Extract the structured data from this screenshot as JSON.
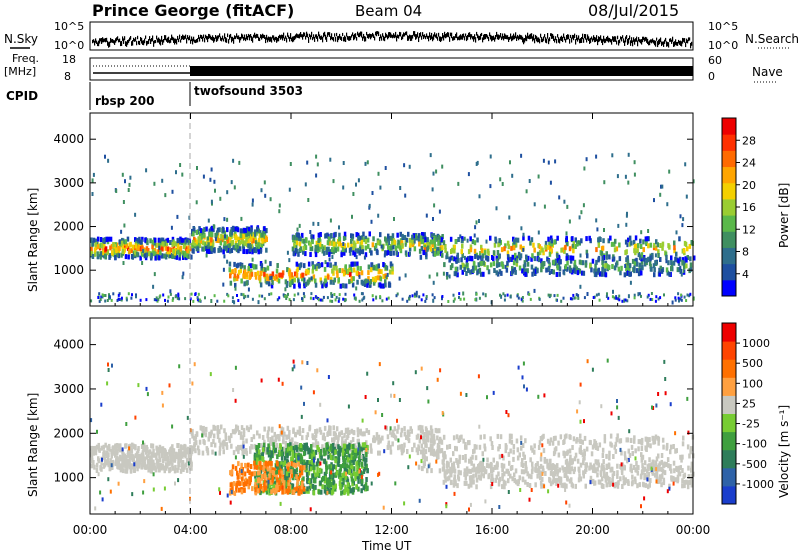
{
  "header": {
    "station": "Prince George (fitACF)",
    "beam": "Beam 04",
    "date": "08/Jul/2015"
  },
  "panels": {
    "nsky_label": "N.Sky",
    "nsearch_label": "N.Search",
    "freq_label_line1": "Freq.",
    "freq_label_line2": "[MHz]",
    "nave_label": "Nave",
    "cpid_label": "CPID",
    "nsky_ticks": [
      "10^5",
      "10^0"
    ],
    "nsearch_ticks": [
      "10^5",
      "10^0"
    ],
    "freq_ticks": [
      "18",
      "8"
    ],
    "nave_ticks": [
      "60",
      "0"
    ],
    "cpid_segments": [
      "rbsp 200",
      "twofsound 3503"
    ]
  },
  "chart_data": [
    {
      "type": "heatmap",
      "title": "",
      "xlabel": "",
      "ylabel": "Slant Range [km]",
      "x_ticks": [
        "00:00",
        "04:00",
        "08:00",
        "12:00",
        "16:00",
        "20:00",
        "00:00"
      ],
      "y_ticks": [
        1000,
        2000,
        3000,
        4000
      ],
      "ylim": [
        180,
        4600
      ],
      "colorbar": {
        "label": "Power [dB]",
        "ticks": [
          4,
          8,
          12,
          16,
          20,
          24,
          28
        ],
        "colors": [
          "#0000ff",
          "#1e4fa0",
          "#2e6e8c",
          "#3f8f60",
          "#5ab84a",
          "#9acd32",
          "#f4d000",
          "#ffa500",
          "#ff6a00",
          "#ff3000",
          "#ee0000"
        ]
      }
    },
    {
      "type": "heatmap",
      "title": "",
      "xlabel": "Time UT",
      "ylabel": "Slant Range [km]",
      "x_ticks": [
        "00:00",
        "04:00",
        "08:00",
        "12:00",
        "16:00",
        "20:00",
        "00:00"
      ],
      "y_ticks": [
        1000,
        2000,
        3000,
        4000
      ],
      "ylim": [
        180,
        4600
      ],
      "colorbar": {
        "label": "Velocity [m s^-1]",
        "ticks": [
          "1000",
          "500",
          "100",
          "25",
          "-25",
          "-100",
          "-500",
          "-1000"
        ],
        "colors": [
          "#1a3ecc",
          "#2e62a8",
          "#2e7d5a",
          "#3f9f3f",
          "#77cc33",
          "#c8c8c0",
          "#ffa040",
          "#ff7000",
          "#ff4400",
          "#ee0000"
        ]
      }
    }
  ]
}
